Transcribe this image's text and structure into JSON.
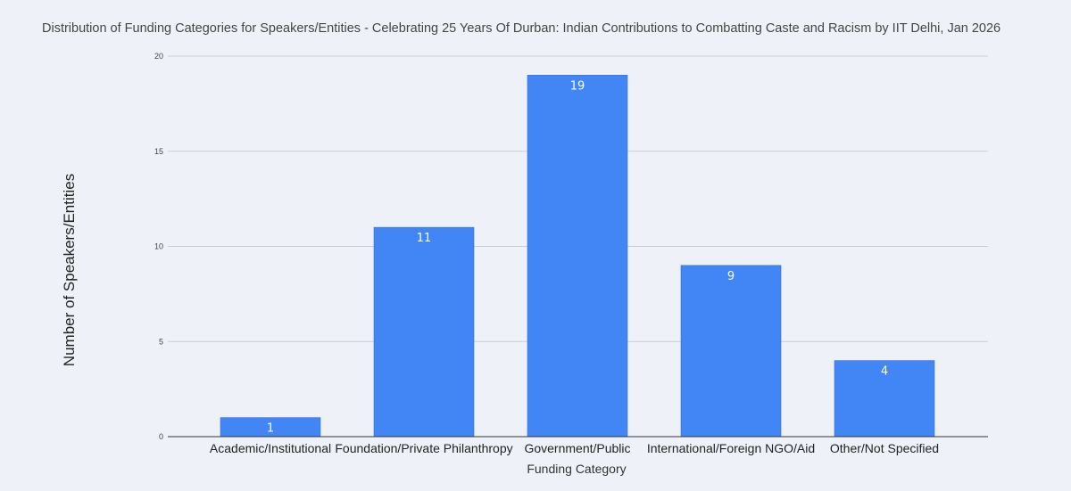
{
  "chart_data": {
    "type": "bar",
    "title": "Distribution of Funding Categories for Speakers/Entities - Celebrating 25 Years Of Durban: Indian Contributions to Combatting Caste and Racism by IIT Delhi, Jan 2026",
    "xlabel": "Funding Category",
    "ylabel": "Number of Speakers/Entities",
    "categories": [
      "Academic/Institutional",
      "Foundation/Private Philanthropy",
      "Government/Public",
      "International/Foreign NGO/Aid",
      "Other/Not Specified"
    ],
    "values": [
      1,
      11,
      19,
      9,
      4
    ],
    "yticks": [
      "0",
      "5",
      "10",
      "15",
      "20"
    ],
    "ylim": [
      0,
      20
    ],
    "grid": true,
    "legend": "none",
    "bar_color": "#4285f4"
  }
}
